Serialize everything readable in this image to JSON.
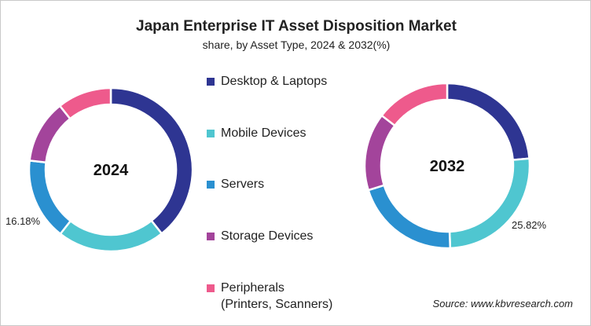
{
  "chart_data": {
    "type": "donut",
    "title": "Japan Enterprise IT Asset Disposition Market",
    "subtitle": "share, by Asset Type, 2024 & 2032(%)",
    "categories": [
      "Desktop & Laptops",
      "Mobile Devices",
      "Servers",
      "Storage Devices",
      "Peripherals (Printers, Scanners)"
    ],
    "legend_lines": [
      [
        "Desktop & Laptops"
      ],
      [
        "Mobile Devices"
      ],
      [
        "Servers"
      ],
      [
        "Storage Devices"
      ],
      [
        "Peripherals",
        "(Printers, Scanners)"
      ]
    ],
    "colors": [
      "#2e3592",
      "#4fc6d0",
      "#2a90d0",
      "#a3449b",
      "#ee5a8c"
    ],
    "legend_placement": "center",
    "charts": [
      {
        "label": "2024",
        "values": [
          39.3,
          21.3,
          16.18,
          12.5,
          10.72
        ],
        "shown_label": {
          "category_index": 2,
          "text": "16.18%"
        }
      },
      {
        "label": "2032",
        "values": [
          23.6,
          25.82,
          20.8,
          15.2,
          14.58
        ],
        "shown_label": {
          "category_index": 1,
          "text": "25.82%"
        }
      }
    ]
  },
  "source": "Source: www.kbvresearch.com"
}
